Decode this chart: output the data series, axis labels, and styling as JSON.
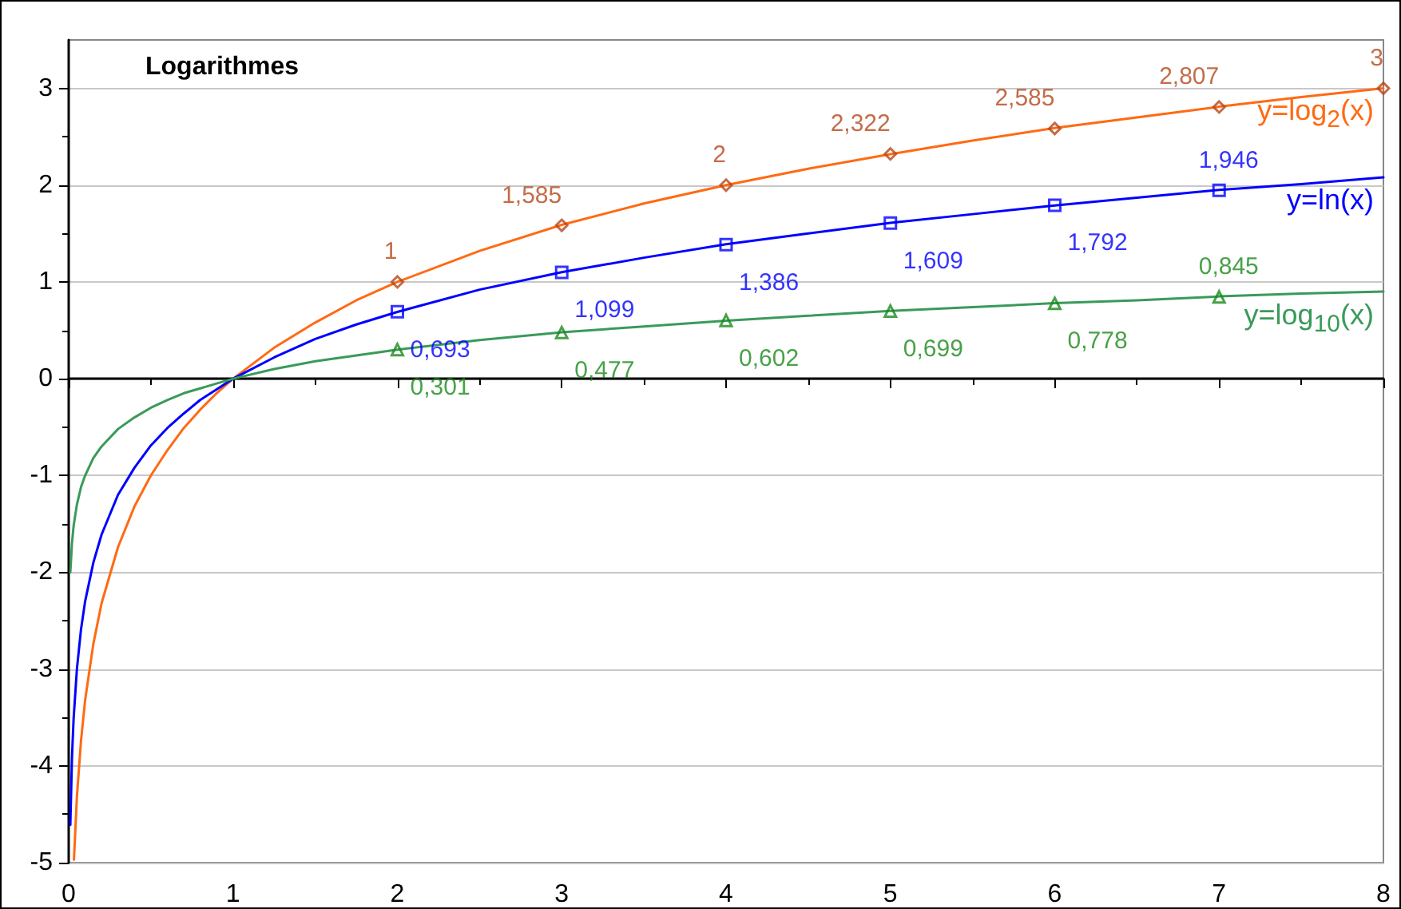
{
  "chart_data": {
    "type": "line",
    "title": "Logarithmes",
    "xlim": [
      0,
      8
    ],
    "xticks": [
      0,
      1,
      2,
      3,
      4,
      5,
      6,
      7,
      8
    ],
    "ylim": [
      -5,
      3.5
    ],
    "yticks": [
      -5,
      -4,
      -3,
      -2,
      -1,
      0,
      1,
      2,
      3
    ],
    "grid": "y",
    "legend": false,
    "marker": "none",
    "line_style": "solid",
    "series": [
      {
        "name": "y=log$_{2}$(x)",
        "color": "#ff6a13",
        "x": [
          0.032,
          0.05,
          0.075,
          0.1,
          0.15,
          0.2,
          0.3,
          0.4,
          0.5,
          0.6,
          0.7,
          0.8,
          0.9,
          1,
          1.25,
          1.5,
          1.75,
          2,
          2.5,
          3,
          3.5,
          4,
          4.5,
          5,
          5.5,
          6,
          6.5,
          7,
          7.5,
          8
        ],
        "values": [
          -4.97,
          -4.32,
          -3.74,
          -3.32,
          -2.74,
          -2.32,
          -1.74,
          -1.32,
          -1,
          -0.74,
          -0.51,
          -0.32,
          -0.15,
          0,
          0.32,
          0.58,
          0.81,
          1,
          1.32,
          1.59,
          1.81,
          2,
          2.17,
          2.32,
          2.46,
          2.59,
          2.7,
          2.81,
          2.91,
          3
        ]
      },
      {
        "name": "y=ln(x)",
        "color": "#0000ff",
        "x": [
          0.01,
          0.02,
          0.03,
          0.05,
          0.075,
          0.1,
          0.15,
          0.2,
          0.3,
          0.4,
          0.5,
          0.6,
          0.7,
          0.8,
          0.9,
          1,
          1.25,
          1.5,
          1.75,
          2,
          2.5,
          3,
          3.5,
          4,
          4.5,
          5,
          5.5,
          6,
          6.5,
          7,
          7.5,
          8
        ],
        "values": [
          -4.61,
          -3.91,
          -3.51,
          -3,
          -2.59,
          -2.3,
          -1.9,
          -1.61,
          -1.2,
          -0.92,
          -0.69,
          -0.51,
          -0.36,
          -0.22,
          -0.11,
          0,
          0.22,
          0.41,
          0.56,
          0.69,
          0.92,
          1.1,
          1.25,
          1.39,
          1.5,
          1.61,
          1.7,
          1.79,
          1.87,
          1.95,
          2.01,
          2.08
        ]
      },
      {
        "name": "y=log$_{10}$(x)",
        "color": "#3a9a5a",
        "x": [
          0.01,
          0.02,
          0.03,
          0.05,
          0.075,
          0.1,
          0.15,
          0.2,
          0.3,
          0.4,
          0.5,
          0.6,
          0.7,
          0.8,
          0.9,
          1,
          1.25,
          1.5,
          1.75,
          2,
          2.5,
          3,
          3.5,
          4,
          4.5,
          5,
          5.5,
          6,
          6.5,
          7,
          7.5,
          8
        ],
        "values": [
          -2,
          -1.7,
          -1.52,
          -1.3,
          -1.12,
          -1,
          -0.82,
          -0.7,
          -0.52,
          -0.4,
          -0.3,
          -0.22,
          -0.15,
          -0.1,
          -0.05,
          0,
          0.1,
          0.18,
          0.24,
          0.3,
          0.4,
          0.48,
          0.54,
          0.6,
          0.65,
          0.7,
          0.74,
          0.78,
          0.81,
          0.85,
          0.88,
          0.9
        ]
      },
      {
        "type": "scatter",
        "marker": "diamond",
        "color": "#b5471b",
        "x": [
          2,
          3,
          4,
          5,
          6,
          7,
          8
        ],
        "values": [
          1,
          1.585,
          2,
          2.322,
          2.585,
          2.807,
          3
        ],
        "value_labels": [
          "1",
          "1,585",
          "2",
          "2,322",
          "2,585",
          "2,807",
          "3"
        ]
      },
      {
        "type": "scatter",
        "marker": "square",
        "color": "#0000ff",
        "x": [
          2,
          3,
          4,
          5,
          6,
          7
        ],
        "values": [
          0.693,
          1.099,
          1.386,
          1.609,
          1.792,
          1.946
        ],
        "value_labels": [
          "0,693",
          "1,099",
          "1,386",
          "1,609",
          "1,792",
          "1,946"
        ]
      },
      {
        "type": "scatter",
        "marker": "triangle",
        "color": "#1a8a1a",
        "x": [
          2,
          3,
          4,
          5,
          6,
          7
        ],
        "values": [
          0.301,
          0.477,
          0.602,
          0.699,
          0.778,
          0.845
        ],
        "value_labels": [
          "0,301",
          "0,477",
          "0,602",
          "0,699",
          "0,778",
          "0,845"
        ]
      }
    ]
  }
}
